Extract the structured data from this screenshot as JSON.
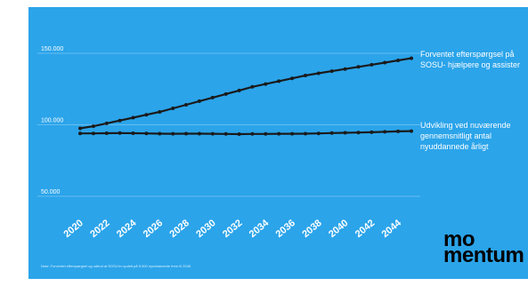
{
  "colors": {
    "background": "#2ba4ea",
    "line": "#1a1a1a",
    "text": "#ffffff",
    "grid": "#ffffff"
  },
  "chart_data": {
    "type": "line",
    "x": [
      2020,
      2021,
      2022,
      2023,
      2024,
      2025,
      2026,
      2027,
      2028,
      2029,
      2030,
      2031,
      2032,
      2033,
      2034,
      2035,
      2036,
      2037,
      2038,
      2039,
      2040,
      2041,
      2042,
      2043,
      2044,
      2045
    ],
    "x_tick_labels": [
      "2020",
      "2022",
      "2024",
      "2026",
      "2028",
      "2030",
      "2032",
      "2034",
      "2036",
      "2038",
      "2040",
      "2042",
      "2044"
    ],
    "y_tick_labels": [
      "150.000",
      "100.000",
      "50.000"
    ],
    "y_ticks": [
      150000,
      100000,
      50000
    ],
    "ylim": [
      50000,
      160000
    ],
    "grid": true,
    "series": [
      {
        "name": "Forventet efterspørgsel på SOSU- hjælpere og assister",
        "values": [
          97500,
          99000,
          101000,
          103000,
          105000,
          107000,
          109000,
          111500,
          114000,
          116500,
          119000,
          121500,
          124000,
          126500,
          128500,
          130500,
          132500,
          134500,
          136000,
          137500,
          139000,
          140500,
          142000,
          143500,
          145000,
          146500
        ]
      },
      {
        "name": "Udvikling ved nuværende gennemsnitligt antal nyuddannede årligt",
        "values": [
          94000,
          94000,
          94100,
          94200,
          94100,
          94000,
          93800,
          93700,
          93800,
          93800,
          93700,
          93600,
          93500,
          93600,
          93600,
          93700,
          93700,
          93800,
          94000,
          94200,
          94400,
          94600,
          94800,
          95100,
          95400,
          95600
        ]
      }
    ]
  },
  "labels": {
    "demand": "Forventet efterspørgsel på\nSOSU- hjælpere og assister",
    "baseline": "Udvikling ved nuværende\ngennemsnitligt antal\nnyuddannede årligt"
  },
  "logo": {
    "text": "mo\nmentum"
  },
  "note": "Note: Forventet efterspørgsel og udbud af SOSU'er opdelt på 5.000 nyuddannede frem til 2045"
}
